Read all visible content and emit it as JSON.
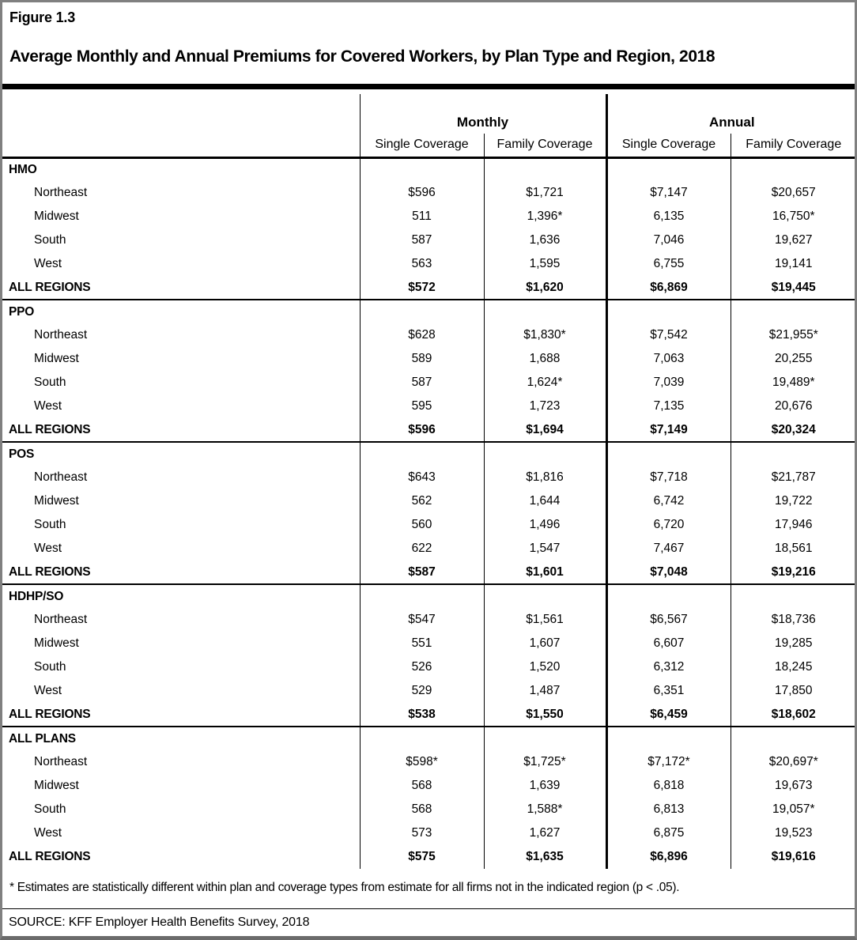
{
  "figure_label": "Figure 1.3",
  "title": "Average Monthly and Annual Premiums for Covered Workers, by Plan Type and Region, 2018",
  "table": {
    "group_headers": [
      "Monthly",
      "Annual"
    ],
    "sub_headers": [
      "Single Coverage",
      "Family Coverage",
      "Single Coverage",
      "Family Coverage"
    ],
    "total_label": "ALL REGIONS",
    "sections": [
      {
        "plan_type": "HMO",
        "rows": [
          {
            "region": "Northeast",
            "values": [
              "$596",
              "$1,721",
              "$7,147",
              "$20,657"
            ]
          },
          {
            "region": "Midwest",
            "values": [
              "511",
              "1,396*",
              "6,135",
              "16,750*"
            ]
          },
          {
            "region": "South",
            "values": [
              "587",
              "1,636",
              "7,046",
              "19,627"
            ]
          },
          {
            "region": "West",
            "values": [
              "563",
              "1,595",
              "6,755",
              "19,141"
            ]
          }
        ],
        "total_values": [
          "$572",
          "$1,620",
          "$6,869",
          "$19,445"
        ]
      },
      {
        "plan_type": "PPO",
        "rows": [
          {
            "region": "Northeast",
            "values": [
              "$628",
              "$1,830*",
              "$7,542",
              "$21,955*"
            ]
          },
          {
            "region": "Midwest",
            "values": [
              "589",
              "1,688",
              "7,063",
              "20,255"
            ]
          },
          {
            "region": "South",
            "values": [
              "587",
              "1,624*",
              "7,039",
              "19,489*"
            ]
          },
          {
            "region": "West",
            "values": [
              "595",
              "1,723",
              "7,135",
              "20,676"
            ]
          }
        ],
        "total_values": [
          "$596",
          "$1,694",
          "$7,149",
          "$20,324"
        ]
      },
      {
        "plan_type": "POS",
        "rows": [
          {
            "region": "Northeast",
            "values": [
              "$643",
              "$1,816",
              "$7,718",
              "$21,787"
            ]
          },
          {
            "region": "Midwest",
            "values": [
              "562",
              "1,644",
              "6,742",
              "19,722"
            ]
          },
          {
            "region": "South",
            "values": [
              "560",
              "1,496",
              "6,720",
              "17,946"
            ]
          },
          {
            "region": "West",
            "values": [
              "622",
              "1,547",
              "7,467",
              "18,561"
            ]
          }
        ],
        "total_values": [
          "$587",
          "$1,601",
          "$7,048",
          "$19,216"
        ]
      },
      {
        "plan_type": "HDHP/SO",
        "rows": [
          {
            "region": "Northeast",
            "values": [
              "$547",
              "$1,561",
              "$6,567",
              "$18,736"
            ]
          },
          {
            "region": "Midwest",
            "values": [
              "551",
              "1,607",
              "6,607",
              "19,285"
            ]
          },
          {
            "region": "South",
            "values": [
              "526",
              "1,520",
              "6,312",
              "18,245"
            ]
          },
          {
            "region": "West",
            "values": [
              "529",
              "1,487",
              "6,351",
              "17,850"
            ]
          }
        ],
        "total_values": [
          "$538",
          "$1,550",
          "$6,459",
          "$18,602"
        ]
      },
      {
        "plan_type": "ALL PLANS",
        "rows": [
          {
            "region": "Northeast",
            "values": [
              "$598*",
              "$1,725*",
              "$7,172*",
              "$20,697*"
            ]
          },
          {
            "region": "Midwest",
            "values": [
              "568",
              "1,639",
              "6,818",
              "19,673"
            ]
          },
          {
            "region": "South",
            "values": [
              "568",
              "1,588*",
              "6,813",
              "19,057*"
            ]
          },
          {
            "region": "West",
            "values": [
              "573",
              "1,627",
              "6,875",
              "19,523"
            ]
          }
        ],
        "total_values": [
          "$575",
          "$1,635",
          "$6,896",
          "$19,616"
        ]
      }
    ]
  },
  "footnote": "* Estimates are statistically different within plan and coverage types from estimate for all firms not in the indicated region (p < .05).",
  "source": "SOURCE: KFF Employer Health Benefits Survey, 2018"
}
